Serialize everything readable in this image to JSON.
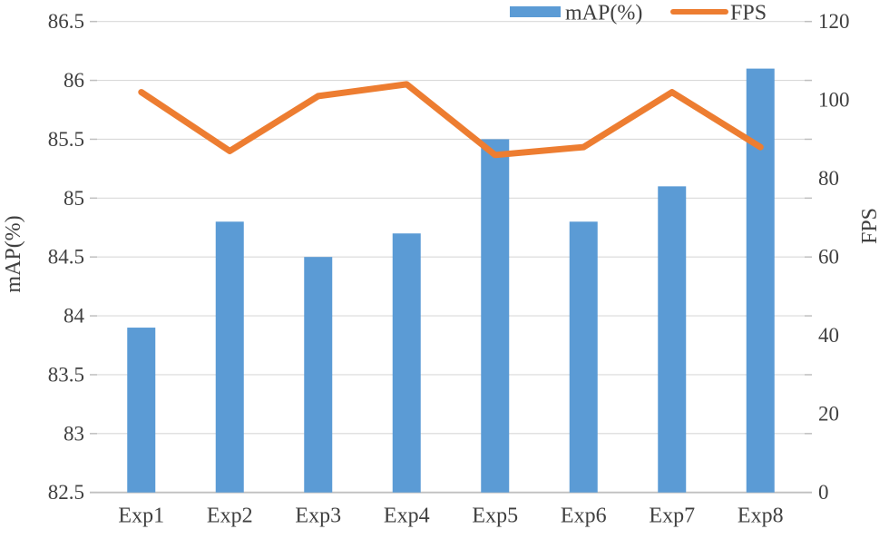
{
  "chart_data": {
    "type": "combo",
    "title": "",
    "categories": [
      "Exp1",
      "Exp2",
      "Exp3",
      "Exp4",
      "Exp5",
      "Exp6",
      "Exp7",
      "Exp8"
    ],
    "series": [
      {
        "name": "mAP(%)",
        "type": "bar",
        "axis": "left",
        "color": "#5B9BD5",
        "values": [
          83.9,
          84.8,
          84.5,
          84.7,
          85.5,
          84.8,
          85.1,
          86.1
        ]
      },
      {
        "name": "FPS",
        "type": "line",
        "axis": "right",
        "color": "#ED7D31",
        "values": [
          102,
          87,
          101,
          104,
          86,
          88,
          102,
          88
        ]
      }
    ],
    "left_axis": {
      "label": "mAP(%)",
      "min": 82.5,
      "max": 86.5,
      "step": 0.5,
      "tick_labels": [
        "86.5",
        "86",
        "85.5",
        "85",
        "84.5",
        "84",
        "83.5",
        "83",
        "82.5"
      ]
    },
    "right_axis": {
      "label": "FPS",
      "min": 0,
      "max": 120,
      "step": 20,
      "tick_labels": [
        "120",
        "100",
        "80",
        "60",
        "40",
        "20",
        "0"
      ]
    },
    "legend": {
      "position": "top",
      "entries": [
        {
          "label": "mAP(%)",
          "swatch": "bar",
          "color": "#5B9BD5"
        },
        {
          "label": "FPS",
          "swatch": "line",
          "color": "#ED7D31"
        }
      ]
    },
    "grid": true,
    "colors": {
      "gridline": "#D9D9D9",
      "axis_line": "#C0C0C0",
      "tick": "#BFBFBF",
      "text": "#404040"
    }
  }
}
